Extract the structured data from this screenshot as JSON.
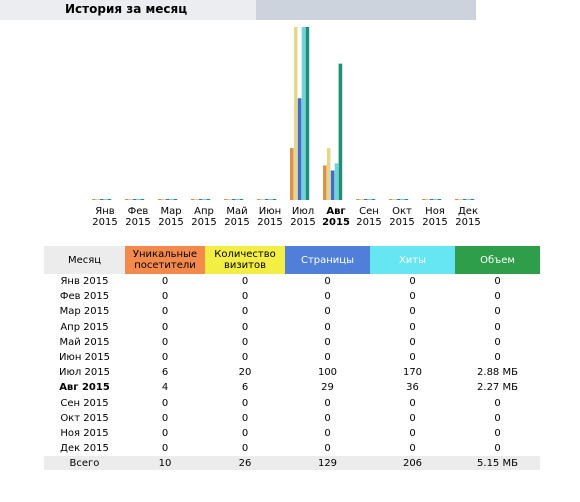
{
  "header": {
    "title": "История за месяц"
  },
  "colors": {
    "unique": "#d9924a",
    "visits": "#e3d78c",
    "pages": "#3e6fc4",
    "hits": "#6fd3dd",
    "bandwidth": "#1e8f74"
  },
  "chart_data": {
    "type": "bar",
    "categories": [
      {
        "month": "Янв",
        "year": "2015"
      },
      {
        "month": "Фев",
        "year": "2015"
      },
      {
        "month": "Мар",
        "year": "2015"
      },
      {
        "month": "Апр",
        "year": "2015"
      },
      {
        "month": "Май",
        "year": "2015"
      },
      {
        "month": "Июн",
        "year": "2015"
      },
      {
        "month": "Июл",
        "year": "2015"
      },
      {
        "month": "Авг",
        "year": "2015"
      },
      {
        "month": "Сен",
        "year": "2015"
      },
      {
        "month": "Окт",
        "year": "2015"
      },
      {
        "month": "Ноя",
        "year": "2015"
      },
      {
        "month": "Дек",
        "year": "2015"
      }
    ],
    "current_index": 7,
    "series": [
      {
        "key": "unique",
        "values": [
          0,
          0,
          0,
          0,
          0,
          0,
          6,
          4,
          0,
          0,
          0,
          0
        ]
      },
      {
        "key": "visits",
        "values": [
          0,
          0,
          0,
          0,
          0,
          0,
          20,
          6,
          0,
          0,
          0,
          0
        ]
      },
      {
        "key": "pages",
        "values": [
          0,
          0,
          0,
          0,
          0,
          0,
          100,
          29,
          0,
          0,
          0,
          0
        ]
      },
      {
        "key": "hits",
        "values": [
          0,
          0,
          0,
          0,
          0,
          0,
          170,
          36,
          0,
          0,
          0,
          0
        ]
      },
      {
        "key": "bandwidth",
        "values": [
          0,
          0,
          0,
          0,
          0,
          0,
          2.88,
          2.27,
          0,
          0,
          0,
          0
        ]
      }
    ]
  },
  "table": {
    "headers": {
      "month": "Месяц",
      "unique": "Уникальные посетители",
      "visits": "Количество визитов",
      "pages": "Страницы",
      "hits": "Хиты",
      "bandwidth": "Объем"
    },
    "rows": [
      {
        "month": "Янв 2015",
        "unique": "0",
        "visits": "0",
        "pages": "0",
        "hits": "0",
        "bandwidth": "0"
      },
      {
        "month": "Фев 2015",
        "unique": "0",
        "visits": "0",
        "pages": "0",
        "hits": "0",
        "bandwidth": "0"
      },
      {
        "month": "Мар 2015",
        "unique": "0",
        "visits": "0",
        "pages": "0",
        "hits": "0",
        "bandwidth": "0"
      },
      {
        "month": "Апр 2015",
        "unique": "0",
        "visits": "0",
        "pages": "0",
        "hits": "0",
        "bandwidth": "0"
      },
      {
        "month": "Май 2015",
        "unique": "0",
        "visits": "0",
        "pages": "0",
        "hits": "0",
        "bandwidth": "0"
      },
      {
        "month": "Июн 2015",
        "unique": "0",
        "visits": "0",
        "pages": "0",
        "hits": "0",
        "bandwidth": "0"
      },
      {
        "month": "Июл 2015",
        "unique": "6",
        "visits": "20",
        "pages": "100",
        "hits": "170",
        "bandwidth": "2.88 МБ"
      },
      {
        "month": "Авг 2015",
        "unique": "4",
        "visits": "6",
        "pages": "29",
        "hits": "36",
        "bandwidth": "2.27 МБ"
      },
      {
        "month": "Сен 2015",
        "unique": "0",
        "visits": "0",
        "pages": "0",
        "hits": "0",
        "bandwidth": "0"
      },
      {
        "month": "Окт 2015",
        "unique": "0",
        "visits": "0",
        "pages": "0",
        "hits": "0",
        "bandwidth": "0"
      },
      {
        "month": "Ноя 2015",
        "unique": "0",
        "visits": "0",
        "pages": "0",
        "hits": "0",
        "bandwidth": "0"
      },
      {
        "month": "Дек 2015",
        "unique": "0",
        "visits": "0",
        "pages": "0",
        "hits": "0",
        "bandwidth": "0"
      }
    ],
    "total": {
      "month": "Всего",
      "unique": "10",
      "visits": "26",
      "pages": "129",
      "hits": "206",
      "bandwidth": "5.15 МБ"
    }
  }
}
